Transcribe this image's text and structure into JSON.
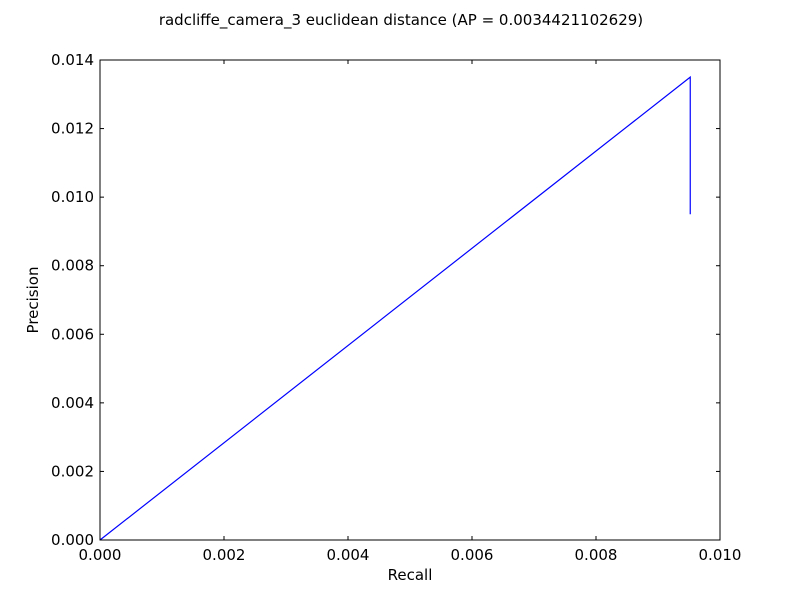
{
  "chart_data": {
    "type": "line",
    "title": "radcliffe_camera_3 euclidean distance  (AP = 0.0034421102629)",
    "xlabel": "Recall",
    "ylabel": "Precision",
    "xlim": [
      0.0,
      0.01
    ],
    "ylim": [
      0.0,
      0.014
    ],
    "xticks": [
      0.0,
      0.002,
      0.004,
      0.006,
      0.008,
      0.01
    ],
    "yticks": [
      0.0,
      0.002,
      0.004,
      0.006,
      0.008,
      0.01,
      0.012,
      0.014
    ],
    "xtick_labels": [
      "0.000",
      "0.002",
      "0.004",
      "0.006",
      "0.008",
      "0.010"
    ],
    "ytick_labels": [
      "0.000",
      "0.002",
      "0.004",
      "0.006",
      "0.008",
      "0.010",
      "0.012",
      "0.014"
    ],
    "grid": false,
    "legend": "none",
    "series": [
      {
        "color": "#0000ff",
        "x": [
          0.0,
          0.00952,
          0.00952
        ],
        "y": [
          0.0,
          0.0135,
          0.0095
        ]
      }
    ]
  }
}
